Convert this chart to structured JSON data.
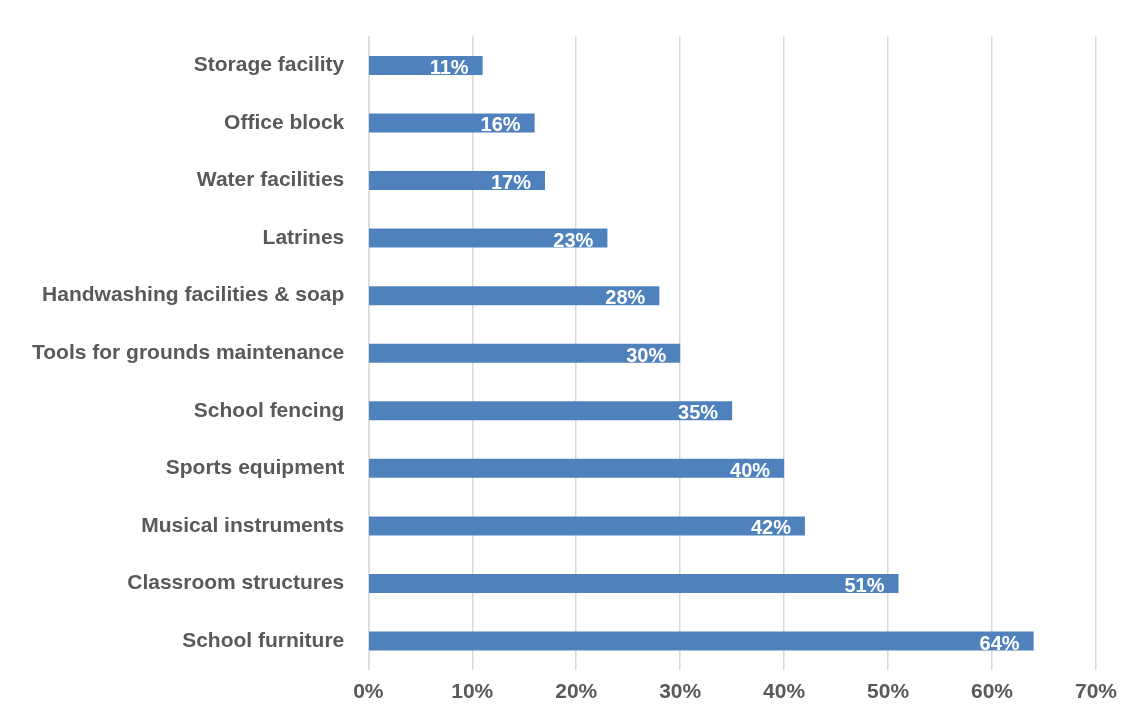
{
  "chart_data": {
    "type": "bar",
    "orientation": "horizontal",
    "categories": [
      "Storage facility",
      "Office block",
      "Water facilities",
      "Latrines",
      "Handwashing facilities & soap",
      "Tools for grounds maintenance",
      "School fencing",
      "Sports equipment",
      "Musical instruments",
      "Classroom structures",
      "School furniture"
    ],
    "values": [
      11,
      16,
      17,
      23,
      28,
      30,
      35,
      40,
      42,
      51,
      64
    ],
    "value_labels": [
      "11%",
      "16%",
      "17%",
      "23%",
      "28%",
      "30%",
      "35%",
      "40%",
      "42%",
      "51%",
      "64%"
    ],
    "color": "#4f81bd",
    "xlim": [
      0,
      70
    ],
    "xticks": [
      {
        "value": 0,
        "label": "0%"
      },
      {
        "value": 10,
        "label": "10%"
      },
      {
        "value": 20,
        "label": "20%"
      },
      {
        "value": 30,
        "label": "30%"
      },
      {
        "value": 40,
        "label": "40%"
      },
      {
        "value": 50,
        "label": "50%"
      },
      {
        "value": 60,
        "label": "60%"
      },
      {
        "value": 70,
        "label": "70%"
      }
    ],
    "grid": "x",
    "legend": false
  }
}
